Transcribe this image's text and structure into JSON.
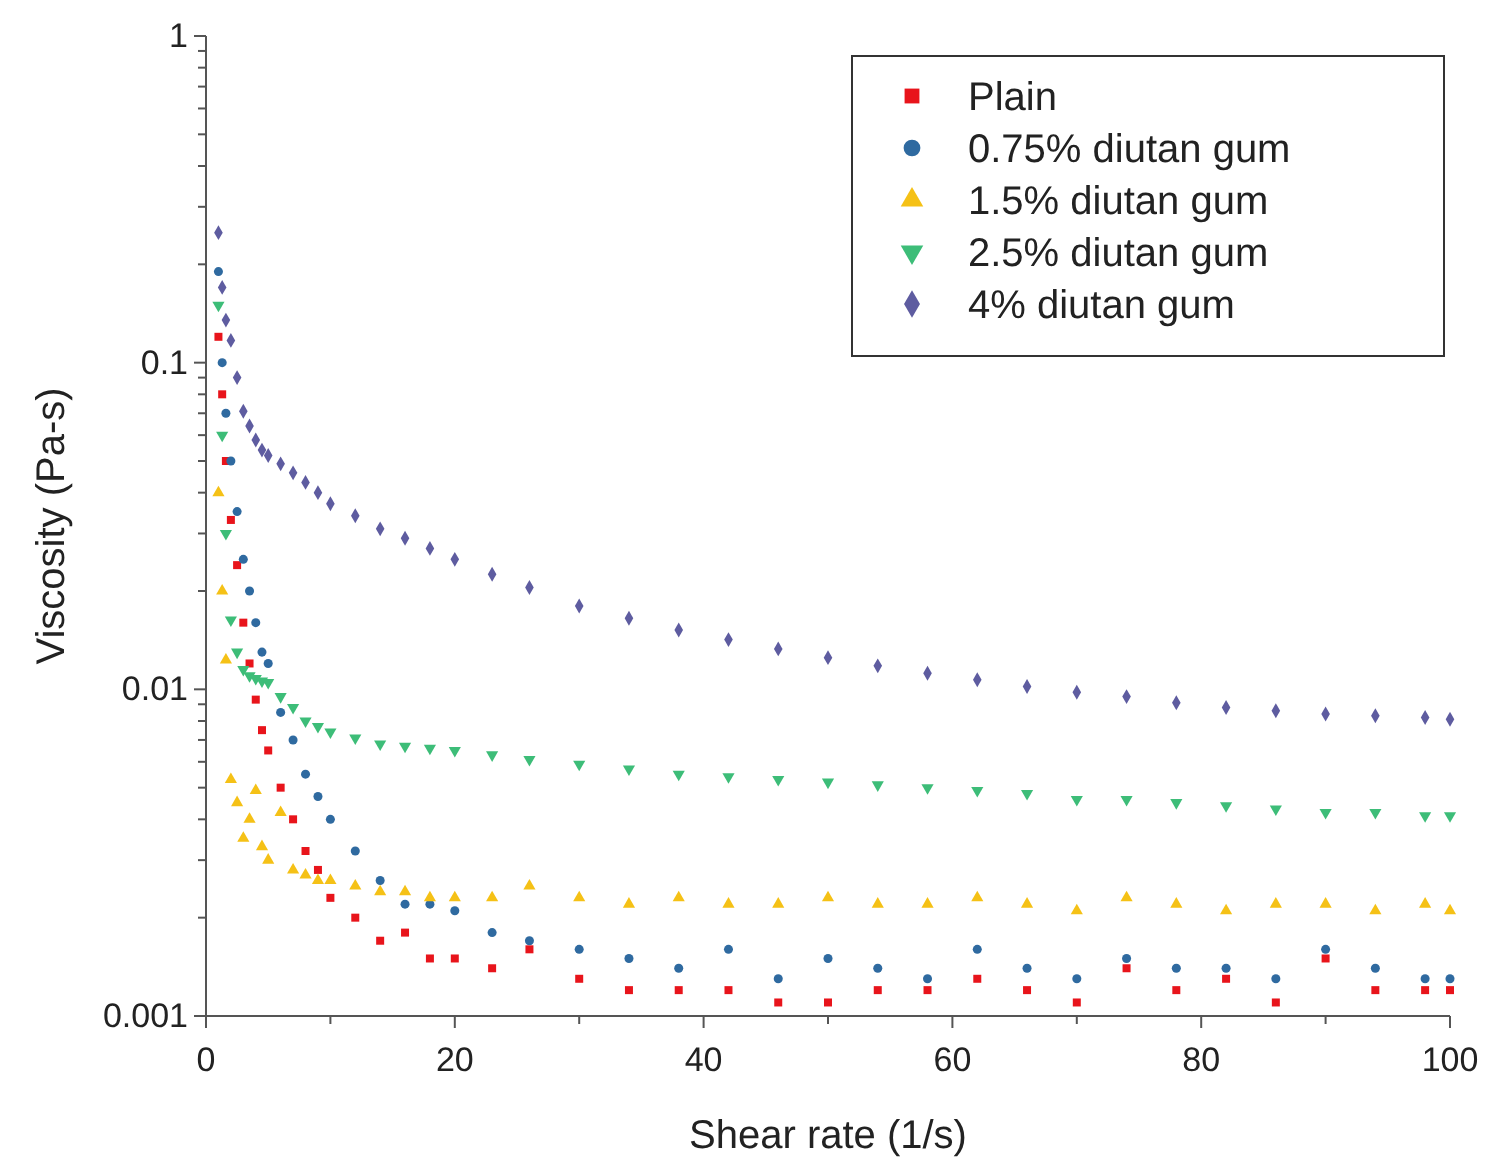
{
  "chart_data": {
    "type": "scatter",
    "xlabel": "Shear rate (1/s)",
    "ylabel": "Viscosity (Pa-s)",
    "log": "y",
    "grid": false,
    "legend": "top right",
    "xlim": [
      0,
      100
    ],
    "ylim": [
      0.001,
      1
    ],
    "xticks": [
      0,
      {
        "value": 10,
        "label": null
      },
      20,
      {
        "value": 30,
        "label": null
      },
      40,
      {
        "value": 50,
        "label": null
      },
      60,
      {
        "value": 70,
        "label": null
      },
      80,
      {
        "value": 90,
        "label": null
      },
      100
    ],
    "yticks": [
      0.001,
      {
        "value": 0.002,
        "label": null
      },
      {
        "value": 0.003,
        "label": null
      },
      {
        "value": 0.004,
        "label": null
      },
      {
        "value": 0.005,
        "label": null
      },
      {
        "value": 0.006,
        "label": null
      },
      {
        "value": 0.007,
        "label": null
      },
      {
        "value": 0.008,
        "label": null
      },
      {
        "value": 0.009,
        "label": null
      },
      0.01,
      {
        "value": 0.02,
        "label": null
      },
      {
        "value": 0.03,
        "label": null
      },
      {
        "value": 0.04,
        "label": null
      },
      {
        "value": 0.05,
        "label": null
      },
      {
        "value": 0.06,
        "label": null
      },
      {
        "value": 0.07,
        "label": null
      },
      {
        "value": 0.08,
        "label": null
      },
      {
        "value": 0.09,
        "label": null
      },
      0.1,
      {
        "value": 0.2,
        "label": null
      },
      {
        "value": 0.3,
        "label": null
      },
      {
        "value": 0.4,
        "label": null
      },
      {
        "value": 0.5,
        "label": null
      },
      {
        "value": 0.6,
        "label": null
      },
      {
        "value": 0.7,
        "label": null
      },
      {
        "value": 0.8,
        "label": null
      },
      {
        "value": 0.9,
        "label": null
      },
      1
    ],
    "x": [
      1,
      1.3,
      1.6,
      2,
      2.5,
      3,
      3.5,
      4,
      4.5,
      5,
      6,
      7,
      8,
      9,
      10,
      12,
      14,
      16,
      18,
      20,
      23,
      26,
      30,
      34,
      38,
      42,
      46,
      50,
      54,
      58,
      62,
      66,
      70,
      74,
      78,
      82,
      86,
      90,
      94,
      98,
      100
    ],
    "series": [
      {
        "name": "Plain",
        "color": "#e8141b",
        "marker": "square",
        "values": [
          0.12,
          0.08,
          0.05,
          0.033,
          0.024,
          0.016,
          0.012,
          0.0093,
          0.0075,
          0.0065,
          0.005,
          0.004,
          0.0032,
          0.0028,
          0.0023,
          0.002,
          0.0017,
          0.0018,
          0.0015,
          0.0015,
          0.0014,
          0.0016,
          0.0013,
          0.0012,
          0.0012,
          0.0012,
          0.0011,
          0.0011,
          0.0012,
          0.0012,
          0.0013,
          0.0012,
          0.0011,
          0.0014,
          0.0012,
          0.0013,
          0.0011,
          0.0015,
          0.0012,
          0.0012,
          0.0012
        ]
      },
      {
        "name": "0.75% diutan gum",
        "color": "#2f6aa0",
        "marker": "circle",
        "values": [
          0.19,
          0.1,
          0.07,
          0.05,
          0.035,
          0.025,
          0.02,
          0.016,
          0.013,
          0.012,
          0.0085,
          0.007,
          0.0055,
          0.0047,
          0.004,
          0.0032,
          0.0026,
          0.0022,
          0.0022,
          0.0021,
          0.0018,
          0.0017,
          0.0016,
          0.0015,
          0.0014,
          0.0016,
          0.0013,
          0.0015,
          0.0014,
          0.0013,
          0.0016,
          0.0014,
          0.0013,
          0.0015,
          0.0014,
          0.0014,
          0.0013,
          0.0016,
          0.0014,
          0.0013,
          0.0013
        ]
      },
      {
        "name": "1.5% diutan gum",
        "color": "#f5c116",
        "marker": "triangle",
        "values": [
          0.04,
          0.02,
          0.0123,
          0.0053,
          0.0045,
          0.0035,
          0.004,
          0.0049,
          0.0033,
          0.003,
          0.0042,
          0.0028,
          0.0027,
          0.0026,
          0.0026,
          0.0025,
          0.0024,
          0.0024,
          0.0023,
          0.0023,
          0.0023,
          0.0025,
          0.0023,
          0.0022,
          0.0023,
          0.0022,
          0.0022,
          0.0023,
          0.0022,
          0.0022,
          0.0023,
          0.0022,
          0.0021,
          0.0023,
          0.0022,
          0.0021,
          0.0022,
          0.0022,
          0.0021,
          0.0022,
          0.0021
        ]
      },
      {
        "name": "2.5% diutan gum",
        "color": "#3dbd78",
        "marker": "triangle-down",
        "values": [
          0.15,
          0.06,
          0.03,
          0.0163,
          0.013,
          0.0115,
          0.011,
          0.0108,
          0.0106,
          0.0105,
          0.0095,
          0.0088,
          0.008,
          0.0077,
          0.0074,
          0.0071,
          0.0068,
          0.0067,
          0.0066,
          0.0065,
          0.0063,
          0.0061,
          0.0059,
          0.0057,
          0.0055,
          0.0054,
          0.0053,
          0.0052,
          0.0051,
          0.005,
          0.0049,
          0.0048,
          0.0046,
          0.0046,
          0.0045,
          0.0044,
          0.0043,
          0.0042,
          0.0042,
          0.0041,
          0.0041
        ]
      },
      {
        "name": "4% diutan gum",
        "color": "#5e5ca0",
        "marker": "diamond",
        "values": [
          0.25,
          0.17,
          0.135,
          0.117,
          0.09,
          0.071,
          0.064,
          0.058,
          0.054,
          0.052,
          0.049,
          0.046,
          0.043,
          0.04,
          0.037,
          0.034,
          0.031,
          0.029,
          0.027,
          0.025,
          0.0225,
          0.0205,
          0.018,
          0.0165,
          0.0152,
          0.0142,
          0.0133,
          0.0125,
          0.0118,
          0.0112,
          0.0107,
          0.0102,
          0.0098,
          0.0095,
          0.0091,
          0.0088,
          0.0086,
          0.0084,
          0.0083,
          0.0082,
          0.0081
        ]
      }
    ]
  }
}
